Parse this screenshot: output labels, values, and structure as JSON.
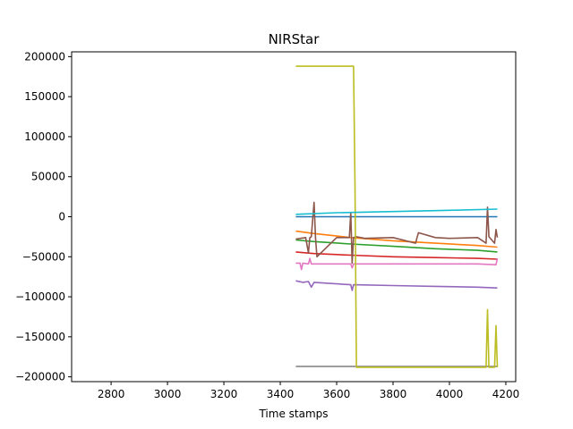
{
  "chart_data": {
    "type": "line",
    "title": "NIRStar",
    "xlabel": "Time stamps",
    "ylabel": "",
    "xlim": [
      2660,
      4235
    ],
    "ylim": [
      -206000,
      206000
    ],
    "xticks": [
      2800,
      3000,
      3200,
      3400,
      3600,
      3800,
      4000,
      4200
    ],
    "yticks": [
      200000,
      150000,
      100000,
      50000,
      0,
      -50000,
      -100000,
      -150000,
      -200000
    ],
    "xtick_labels": [
      "2800",
      "3000",
      "3200",
      "3400",
      "3600",
      "3800",
      "4000",
      "4200"
    ],
    "ytick_labels": [
      "200000",
      "150000",
      "100000",
      "50000",
      "0",
      "−50000",
      "−100000",
      "−150000",
      "−200000"
    ],
    "grid": false,
    "legend": false,
    "series": [
      {
        "color": "#1f77b4",
        "x": [
          3455,
          4170
        ],
        "y": [
          0,
          0
        ]
      },
      {
        "color": "#ff7f0e",
        "x": [
          3455,
          3520,
          3650,
          3800,
          3950,
          4100,
          4170
        ],
        "y": [
          -18000,
          -21000,
          -26000,
          -30000,
          -33000,
          -36000,
          -38000
        ]
      },
      {
        "color": "#2ca02c",
        "x": [
          3455,
          3520,
          3650,
          3800,
          3950,
          4100,
          4170
        ],
        "y": [
          -29000,
          -31000,
          -34000,
          -37000,
          -40000,
          -42000,
          -44000
        ]
      },
      {
        "color": "#d62728",
        "x": [
          3455,
          3520,
          3650,
          3800,
          3950,
          4100,
          4170
        ],
        "y": [
          -44000,
          -46000,
          -48000,
          -50000,
          -51000,
          -52000,
          -53000
        ]
      },
      {
        "color": "#9467bd",
        "x": [
          3455,
          3480,
          3500,
          3510,
          3520,
          3650,
          3655,
          3660,
          3800,
          3950,
          4100,
          4170
        ],
        "y": [
          -80000,
          -82000,
          -81000,
          -88000,
          -82000,
          -85000,
          -92000,
          -85000,
          -86000,
          -87000,
          -88000,
          -89000
        ]
      },
      {
        "color": "#8c564b",
        "x": [
          3455,
          3490,
          3500,
          3505,
          3510,
          3520,
          3525,
          3530,
          3600,
          3645,
          3650,
          3655,
          3660,
          3670,
          3700,
          3800,
          3880,
          3885,
          3890,
          3950,
          4000,
          4100,
          4130,
          4135,
          4140,
          4160,
          4165,
          4170
        ],
        "y": [
          -28000,
          -26000,
          -45000,
          -26000,
          -25000,
          18000,
          -26000,
          -50000,
          -26000,
          -26000,
          5000,
          -58000,
          -26000,
          -25000,
          -27000,
          -26000,
          -33000,
          -26000,
          -20000,
          -26000,
          -27000,
          -26000,
          -33000,
          12000,
          -25000,
          -33000,
          -16000,
          -26000
        ]
      },
      {
        "color": "#e377c2",
        "x": [
          3455,
          3470,
          3475,
          3480,
          3500,
          3505,
          3510,
          3650,
          3655,
          3660,
          3800,
          3950,
          4100,
          4165,
          4170
        ],
        "y": [
          -58000,
          -58000,
          -66000,
          -58000,
          -59000,
          -52000,
          -59000,
          -59000,
          -64000,
          -59000,
          -59000,
          -59000,
          -59000,
          -60000,
          -52000
        ]
      },
      {
        "color": "#7f7f7f",
        "x": [
          3455,
          4170
        ],
        "y": [
          -187000,
          -187000
        ]
      },
      {
        "color": "#bcbd22",
        "x": [
          3455,
          3660,
          3665,
          3670,
          4130,
          4135,
          4140,
          4160,
          4165,
          4170
        ],
        "y": [
          188000,
          188000,
          40000,
          -188000,
          -188000,
          -116000,
          -188000,
          -188000,
          -136000,
          -188000
        ]
      },
      {
        "color": "#17becf",
        "x": [
          3455,
          3600,
          3800,
          4000,
          4170
        ],
        "y": [
          3000,
          5000,
          6500,
          8000,
          9500
        ]
      }
    ]
  }
}
